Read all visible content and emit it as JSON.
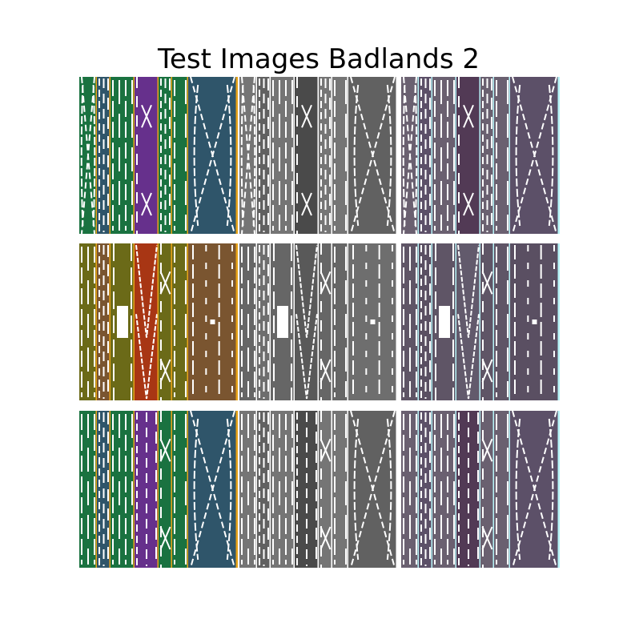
{
  "title": "Test Images Badlands 2",
  "colors": {
    "background": "#ffffff",
    "separator": "#ffffff",
    "pattern_white": "#ffffff",
    "accent_orange": "#e8a317",
    "cyan_line": "#b6f3f7"
  },
  "palettes": {
    "color": [
      "#1a7240",
      "#2f556a",
      "#66308c",
      "#6b6a18",
      "#7a5530",
      "#a83614"
    ],
    "gray": [
      "#757575",
      "#616161",
      "#4a4a4a",
      "#666666",
      "#6e6e6e",
      "#595959"
    ],
    "mauve": [
      "#6a6070",
      "#5c5068",
      "#523a55",
      "#5f5566",
      "#5a4f62",
      "#625a6c"
    ]
  },
  "rows": [
    {
      "bands": [
        {
          "color": 0,
          "pattern": "diamond"
        },
        {
          "color": 1,
          "pattern": "dashes"
        },
        {
          "color": 0,
          "pattern": "bars"
        },
        {
          "color": 2,
          "pattern": "cross"
        },
        {
          "color": 0,
          "pattern": "dashes"
        },
        {
          "color": 0,
          "pattern": "bars"
        },
        {
          "color": 1,
          "pattern": "diamond"
        }
      ]
    },
    {
      "bands": [
        {
          "color": 3,
          "pattern": "bars"
        },
        {
          "color": 4,
          "pattern": "dashes"
        },
        {
          "color": 3,
          "pattern": "block"
        },
        {
          "color": 5,
          "pattern": "chevron"
        },
        {
          "color": 3,
          "pattern": "cross"
        },
        {
          "color": 3,
          "pattern": "bars"
        },
        {
          "color": 4,
          "pattern": "dots"
        }
      ]
    },
    {
      "bands": [
        {
          "color": 0,
          "pattern": "bars"
        },
        {
          "color": 1,
          "pattern": "dashes"
        },
        {
          "color": 0,
          "pattern": "bars"
        },
        {
          "color": 2,
          "pattern": "dashes"
        },
        {
          "color": 0,
          "pattern": "cross"
        },
        {
          "color": 0,
          "pattern": "bars"
        },
        {
          "color": 1,
          "pattern": "diamond"
        }
      ]
    }
  ]
}
